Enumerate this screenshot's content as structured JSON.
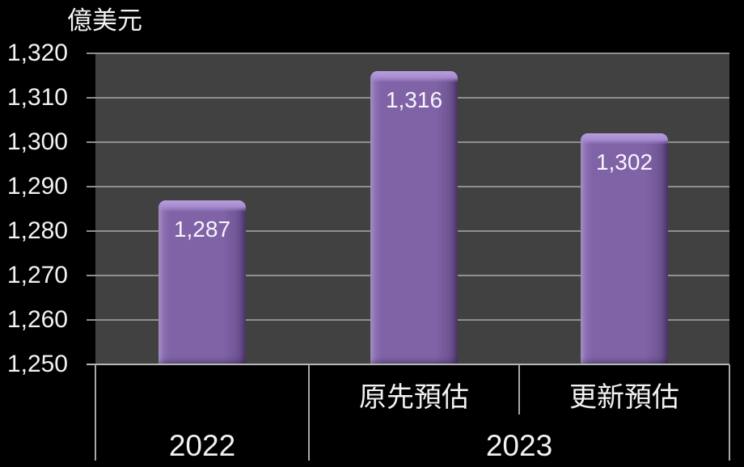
{
  "chart_data": {
    "type": "bar",
    "unit_label": "億美元",
    "ylabel": "億美元",
    "ylim": [
      1250,
      1320
    ],
    "ytick_step": 10,
    "ytick_labels": [
      "1,250",
      "1,260",
      "1,270",
      "1,280",
      "1,290",
      "1,300",
      "1,310",
      "1,320"
    ],
    "grid": true,
    "legend": false,
    "bars": [
      {
        "value": 1287,
        "label": "1,287",
        "group": "2022",
        "subcategory": ""
      },
      {
        "value": 1316,
        "label": "1,316",
        "group": "2023",
        "subcategory": "原先預估"
      },
      {
        "value": 1302,
        "label": "1,302",
        "group": "2023",
        "subcategory": "更新預估"
      }
    ],
    "group_axis": [
      {
        "label": "2022",
        "sub": [
          ""
        ]
      },
      {
        "label": "2023",
        "sub": [
          "原先預估",
          "更新預估"
        ]
      }
    ],
    "colors": {
      "background": "#000000",
      "plot_background": "#414141",
      "gridline": "#8f8f8f",
      "axis_line": "#b8b8b8",
      "category_line": "#a8a8a8",
      "text": "#f2f2f2",
      "bar_body_left": "#9176b9",
      "bar_body": "#8063a7",
      "bar_body_right": "#674e8a",
      "bar_bevel_top": "#b89edf",
      "bar_bevel_mid": "#a68bd0"
    }
  }
}
